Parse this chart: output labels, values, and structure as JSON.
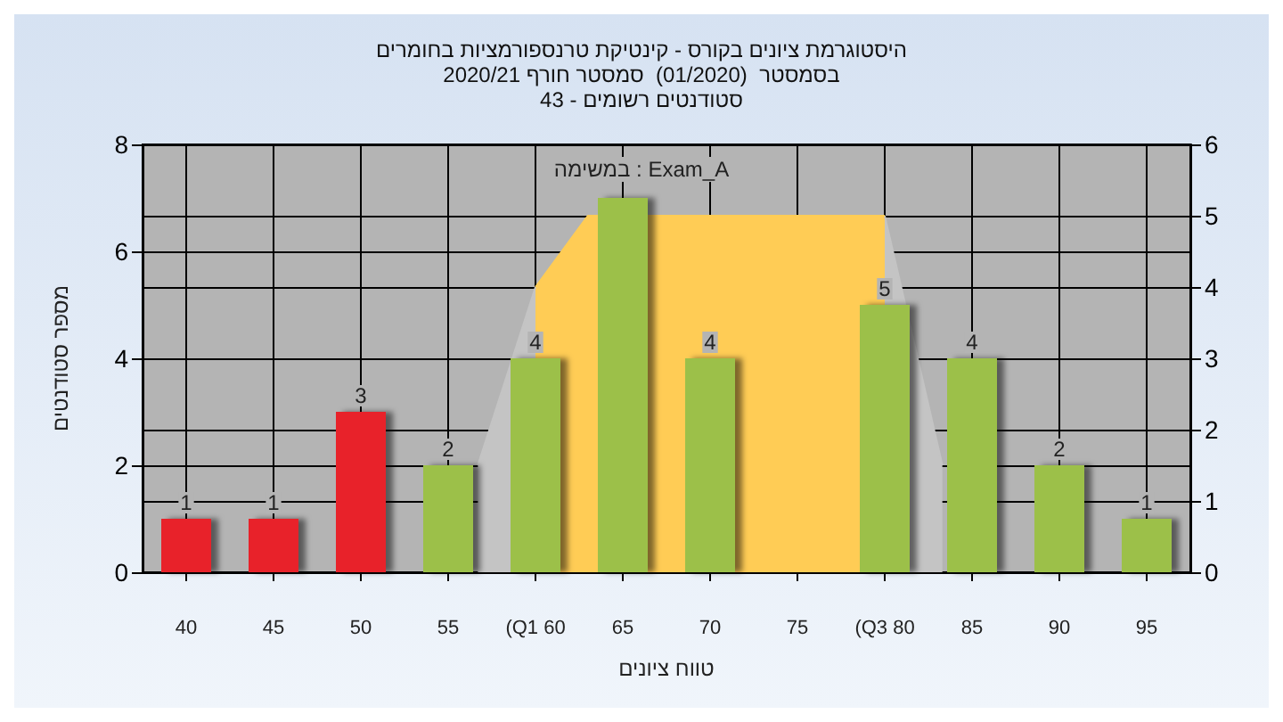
{
  "chart_data": {
    "type": "bar",
    "title": "היסטוגרמת ציונים בקורס - קינטיקת טרנספורמציות בחומרים",
    "subtitle": "בסמסטר  (01/2020)  סמסטר חורף 2020/21\nסטודנטים רשומים - 43",
    "annotations": [
      "במשימה : Exam_A"
    ],
    "xlabel": "טווח ציונים",
    "ylabel": "מספר סטודנטים",
    "x": [
      40,
      45,
      50,
      55,
      60,
      65,
      70,
      75,
      80,
      85,
      90,
      95
    ],
    "xlim": [
      37.5,
      97.5
    ],
    "xticks": [
      40,
      45,
      50,
      55,
      {
        "value": 60,
        "label": "(Q1 60"
      },
      65,
      70,
      75,
      {
        "value": 80,
        "label": "(Q3 80"
      },
      85,
      90,
      95
    ],
    "series": [
      {
        "type": "area",
        "axis": "y2",
        "color": "#c4c4c4",
        "x": [
          56.7,
          60
        ],
        "values": [
          1.5,
          4
        ]
      },
      {
        "type": "area",
        "axis": "y2",
        "color": "#c4c4c4",
        "x": [
          80,
          83.3
        ],
        "values": [
          5,
          1.5
        ]
      },
      {
        "type": "area",
        "axis": "y2",
        "color": "#ffcc55",
        "x": [
          60,
          63,
          80
        ],
        "values": [
          4,
          5,
          5
        ]
      },
      {
        "values": [
          1,
          1,
          3,
          2,
          4,
          7,
          4,
          0,
          5,
          4,
          2,
          1
        ],
        "value_labels": [
          "1",
          "1",
          "3",
          "2",
          "4",
          null,
          "4",
          null,
          "5",
          "4",
          "2",
          "1"
        ],
        "colors": [
          "#e8222a",
          "#e8222a",
          "#e8222a",
          "#9cc048",
          "#9cc048",
          "#9cc048",
          "#9cc048",
          "#9cc048",
          "#9cc048",
          "#9cc048",
          "#9cc048",
          "#9cc048"
        ]
      }
    ],
    "ylim": [
      0,
      8
    ],
    "yticks": [
      0,
      2,
      4,
      6,
      8
    ],
    "y2lim": [
      0,
      6
    ],
    "y2ticks": [
      0,
      1,
      2,
      3,
      4,
      5,
      6
    ],
    "grid": true
  }
}
